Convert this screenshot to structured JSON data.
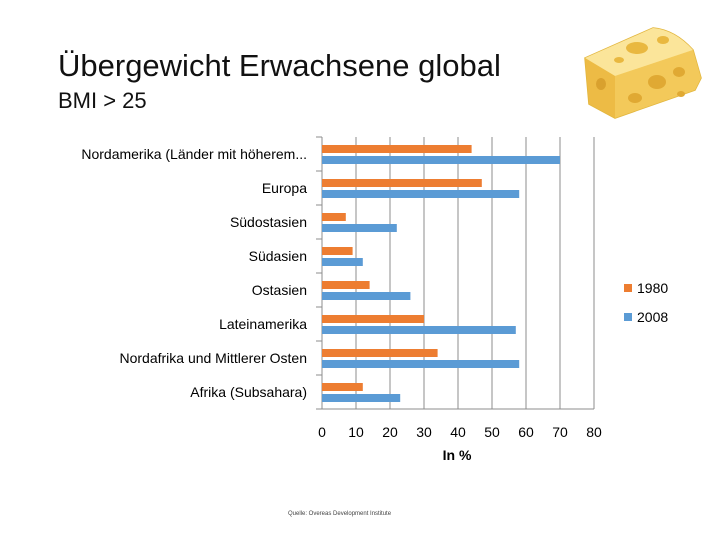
{
  "slide": {
    "title": "Übergewicht Erwachsene global",
    "subtitle": "BMI > 25",
    "source": "Quelle: Overeas Development Institute"
  },
  "decor": {
    "image": "cheese-wedge-illustration"
  },
  "colors": {
    "s1980": "#ED7D31",
    "s2008": "#5B9BD5",
    "grid": "#8C8C8C"
  },
  "chart_data": {
    "type": "bar",
    "orientation": "horizontal",
    "categories": [
      "Nordamerika (Länder mit höherem...",
      "Europa",
      "Südostasien",
      "Südasien",
      "Ostasien",
      "Lateinamerika",
      "Nordafrika und Mittlerer Osten",
      "Afrika (Subsahara)"
    ],
    "series": [
      {
        "name": "1980",
        "values": [
          44,
          47,
          7,
          9,
          14,
          30,
          34,
          12
        ]
      },
      {
        "name": "2008",
        "values": [
          70,
          58,
          22,
          12,
          26,
          57,
          58,
          23
        ]
      }
    ],
    "xlabel": "In %",
    "xlim": [
      0,
      80
    ],
    "xticks": [
      "0",
      "10",
      "20",
      "30",
      "40",
      "50",
      "60",
      "70",
      "80"
    ],
    "grid": true,
    "legend": "right"
  }
}
